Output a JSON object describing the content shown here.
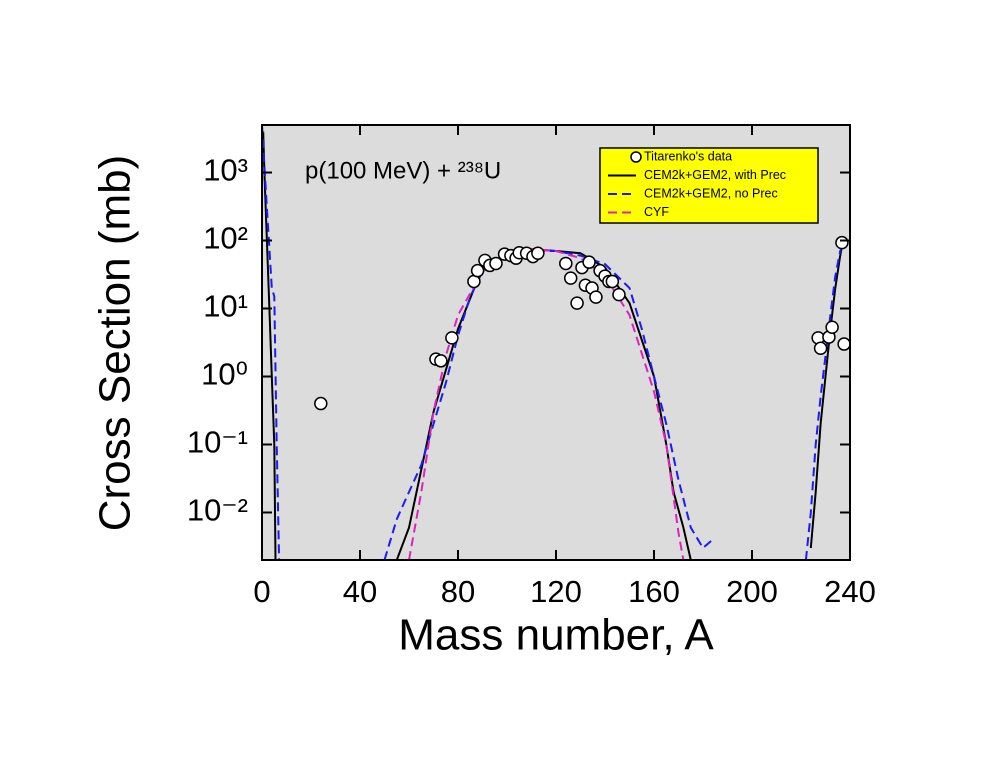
{
  "chart_data": {
    "type": "line",
    "annotation": "p(100 MeV) + ²³⁸U",
    "xlabel": "Mass number, A",
    "ylabel": "Cross Section (mb)",
    "log_y": true,
    "grid": false,
    "legend": "upper right",
    "background": "#dcdcdc",
    "legend_background": "#ffff00",
    "xlim": [
      0,
      240
    ],
    "xticks": [
      0,
      40,
      80,
      120,
      160,
      200,
      240
    ],
    "ylim": [
      0.002,
      5000
    ],
    "yticks": [
      {
        "value": 0.01,
        "label": "10⁻²"
      },
      {
        "value": 0.1,
        "label": "10⁻¹"
      },
      {
        "value": 1,
        "label": "10⁰"
      },
      {
        "value": 10,
        "label": "10¹"
      },
      {
        "value": 100,
        "label": "10²"
      },
      {
        "value": 1000,
        "label": "10³"
      }
    ],
    "series": [
      {
        "name": "Titarenko's data",
        "type": "scatter",
        "color": "#000000",
        "x": [
          24,
          71,
          73,
          77.5,
          86.5,
          88,
          91,
          93,
          95.5,
          99,
          101.6,
          103.7,
          105,
          108,
          110.6,
          112.6,
          124,
          126,
          128.6,
          130.6,
          132,
          133.5,
          134.7,
          136.3,
          138,
          140,
          141.6,
          143,
          145.7,
          227,
          228,
          231.4,
          232.7,
          236.7,
          237.6
        ],
        "values": [
          0.4,
          1.8,
          1.7,
          3.7,
          25,
          36,
          51,
          43,
          46,
          63,
          60,
          55,
          66,
          65,
          58,
          65,
          46,
          28,
          12,
          40,
          22,
          48,
          20,
          14.7,
          36,
          30,
          25,
          25,
          16,
          3.7,
          2.6,
          3.8,
          5.3,
          93,
          3.0
        ]
      },
      {
        "name": "CEM2k+GEM2, with Prec",
        "type": "line",
        "dash": "solid",
        "color": "#000000",
        "x": [
          0.5,
          1,
          2,
          3,
          4,
          5,
          5.5,
          null,
          55,
          60,
          70,
          80,
          90,
          100,
          110,
          120,
          130,
          140,
          150,
          160,
          165,
          168,
          172,
          175,
          null,
          224,
          226,
          228,
          230,
          232,
          234,
          236,
          237
        ],
        "values": [
          4000,
          1000,
          100,
          10,
          1,
          0.1,
          0.002,
          null,
          0.002,
          0.006,
          0.3,
          5,
          40,
          60,
          75,
          70,
          65,
          40,
          12,
          1,
          0.1,
          0.02,
          0.006,
          0.002,
          null,
          0.003,
          0.02,
          0.2,
          1,
          5,
          20,
          60,
          90
        ]
      },
      {
        "name": "CEM2k+GEM2, no Prec",
        "type": "line",
        "dash": "dashed",
        "color": "#1a1aff",
        "x": [
          0,
          2,
          4,
          5,
          6,
          7,
          null,
          50,
          55,
          60,
          65,
          70,
          75,
          80,
          85,
          90,
          100,
          110,
          120,
          130,
          140,
          150,
          155,
          160,
          165,
          170,
          175,
          180,
          184,
          null,
          222,
          224,
          226,
          228,
          230,
          232,
          234,
          236,
          237
        ],
        "values": [
          5000,
          300,
          20,
          15,
          0.1,
          0.002,
          null,
          0.002,
          0.008,
          0.02,
          0.05,
          0.2,
          0.8,
          4,
          15,
          35,
          60,
          70,
          70,
          60,
          45,
          20,
          5,
          1,
          0.2,
          0.03,
          0.006,
          0.003,
          0.004,
          null,
          0.002,
          0.01,
          0.1,
          0.5,
          2,
          8,
          30,
          70,
          80
        ]
      },
      {
        "name": "CYF",
        "type": "line",
        "dash": "dashed",
        "color": "#e020c0",
        "x": [
          60,
          65,
          70,
          75,
          80,
          90,
          100,
          110,
          120,
          130,
          140,
          150,
          160,
          165,
          170,
          172
        ],
        "values": [
          0.002,
          0.02,
          0.3,
          2,
          8,
          35,
          60,
          75,
          70,
          55,
          30,
          8,
          0.6,
          0.1,
          0.005,
          0.002
        ]
      }
    ]
  }
}
